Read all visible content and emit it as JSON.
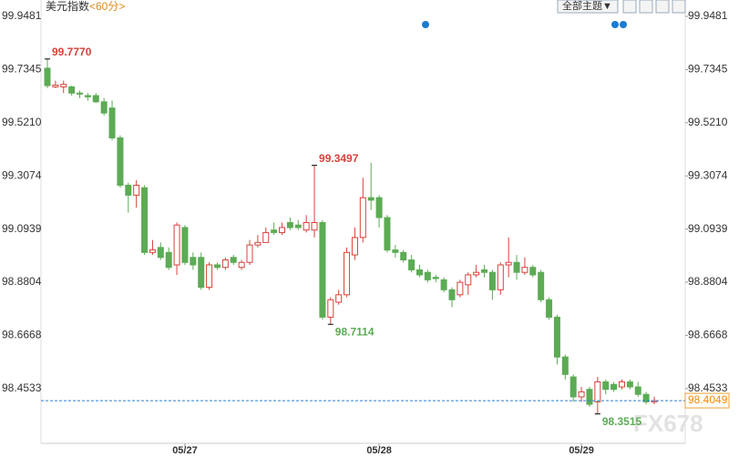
{
  "chart_data": {
    "type": "candlestick",
    "title": "美元指数",
    "period": "<60分>",
    "toolbar": "全部主题▼",
    "watermark": "FX678",
    "categories": [
      null,
      null,
      null,
      null,
      null,
      null,
      null,
      null,
      null,
      null,
      null,
      null,
      null,
      null,
      null,
      null,
      null,
      "05/27",
      null,
      null,
      null,
      null,
      null,
      null,
      null,
      null,
      null,
      null,
      null,
      null,
      null,
      null,
      null,
      null,
      null,
      null,
      null,
      null,
      null,
      null,
      null,
      "05/28",
      null,
      null,
      null,
      null,
      null,
      null,
      null,
      null,
      null,
      null,
      null,
      null,
      null,
      null,
      null,
      null,
      null,
      null,
      null,
      null,
      null,
      null,
      null,
      null,
      "05/29",
      null,
      null,
      null,
      null,
      null,
      null,
      null,
      null,
      null
    ],
    "open": [
      99.74,
      99.665,
      99.665,
      99.665,
      99.64,
      99.63,
      99.63,
      99.605,
      99.58,
      99.46,
      99.27,
      99.23,
      99.26,
      99.0,
      99.02,
      99.0,
      98.95,
      99.1,
      98.98,
      98.98,
      98.86,
      98.95,
      98.94,
      98.98,
      98.94,
      98.96,
      99.03,
      99.04,
      99.09,
      99.08,
      99.12,
      99.11,
      99.09,
      99.09,
      99.12,
      98.74,
      98.8,
      98.83,
      98.99,
      99.06,
      99.22,
      99.22,
      99.14,
      99.01,
      99.0,
      98.97,
      98.93,
      98.92,
      98.9,
      98.89,
      98.85,
      98.83,
      98.87,
      98.91,
      98.93,
      98.92,
      98.85,
      98.95,
      98.96,
      98.92,
      98.94,
      98.92,
      98.81,
      98.74,
      98.58,
      98.5,
      98.42,
      98.45,
      98.4,
      98.48,
      98.47,
      98.46,
      98.48,
      98.46,
      98.43,
      98.4
    ],
    "high": [
      99.777,
      99.69,
      99.69,
      99.67,
      99.65,
      99.64,
      99.64,
      99.62,
      99.61,
      99.47,
      99.28,
      99.29,
      99.27,
      99.05,
      99.04,
      99.02,
      99.12,
      99.11,
      99.0,
      99.0,
      98.96,
      98.96,
      98.98,
      98.99,
      98.97,
      99.05,
      99.07,
      99.1,
      99.12,
      99.12,
      99.14,
      99.13,
      99.15,
      99.3497,
      99.13,
      98.82,
      98.85,
      99.02,
      99.1,
      99.3,
      99.36,
      99.23,
      99.15,
      99.03,
      99.01,
      98.99,
      98.95,
      98.93,
      98.91,
      98.9,
      98.86,
      98.89,
      98.92,
      98.95,
      98.95,
      98.93,
      98.96,
      99.06,
      98.99,
      98.98,
      98.95,
      98.93,
      98.82,
      98.75,
      98.59,
      98.51,
      98.46,
      98.46,
      98.5,
      98.49,
      98.48,
      98.49,
      98.49,
      98.48,
      98.44,
      98.42
    ],
    "low": [
      99.66,
      99.66,
      99.64,
      99.63,
      99.62,
      99.61,
      99.6,
      99.55,
      99.45,
      99.26,
      99.16,
      99.18,
      98.99,
      98.99,
      98.97,
      98.93,
      98.91,
      98.95,
      98.93,
      98.85,
      98.85,
      98.93,
      98.93,
      98.95,
      98.93,
      98.95,
      99.02,
      99.04,
      99.07,
      99.07,
      99.09,
      99.09,
      99.08,
      99.06,
      98.73,
      98.7114,
      98.79,
      98.82,
      98.97,
      99.04,
      99.17,
      99.1,
      99.0,
      98.98,
      98.96,
      98.92,
      98.9,
      98.88,
      98.88,
      98.84,
      98.78,
      98.82,
      98.83,
      98.9,
      98.9,
      98.81,
      98.83,
      98.9,
      98.89,
      98.91,
      98.9,
      98.8,
      98.73,
      98.55,
      98.49,
      98.4,
      98.4,
      98.38,
      98.3515,
      98.43,
      98.44,
      98.45,
      98.45,
      98.42,
      98.39,
      98.39
    ],
    "close": [
      99.67,
      99.672,
      99.675,
      99.64,
      99.636,
      99.625,
      99.605,
      99.56,
      99.46,
      99.27,
      99.23,
      99.27,
      99.0,
      99.01,
      98.98,
      98.94,
      99.11,
      98.96,
      98.95,
      98.86,
      98.95,
      98.94,
      98.97,
      98.96,
      98.96,
      99.03,
      99.04,
      99.08,
      99.08,
      99.1,
      99.1,
      99.1,
      99.12,
      99.12,
      98.74,
      98.81,
      98.83,
      99.0,
      99.06,
      99.22,
      99.21,
      99.14,
      99.01,
      99.0,
      98.97,
      98.93,
      98.91,
      98.89,
      98.895,
      98.85,
      98.81,
      98.88,
      98.91,
      98.92,
      98.92,
      98.85,
      98.95,
      98.96,
      98.92,
      98.94,
      98.91,
      98.81,
      98.74,
      98.58,
      98.51,
      98.42,
      98.44,
      98.39,
      98.48,
      98.45,
      98.45,
      98.48,
      98.46,
      98.43,
      98.4,
      98.4049
    ],
    "up_color": "#d9413b",
    "down_color": "#5cab55",
    "ylim": [
      98.2333,
      100.0139
    ],
    "yticks": [
      99.9481,
      99.7345,
      {
        "value": 99.521,
        "label": "99.5210"
      },
      99.3074,
      99.0939,
      98.8804,
      98.6668,
      98.4533
    ],
    "current_price": 98.4049,
    "annotations": [
      {
        "value": 99.777,
        "label": "99.7770"
      },
      {
        "value": 99.3497,
        "label": "99.3497"
      },
      {
        "value": 98.7114,
        "label": "98.7114"
      },
      {
        "value": 98.3515,
        "label": "98.3515"
      }
    ]
  }
}
